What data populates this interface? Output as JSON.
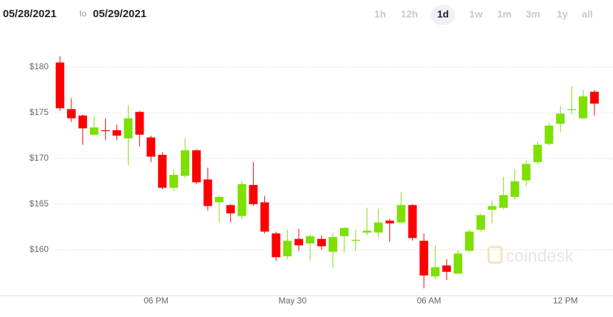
{
  "chart_data": {
    "type": "candlestick",
    "date_range": [
      "05/28/2021",
      "05/29/2021"
    ],
    "date_separator": "to",
    "range_buttons": [
      "1h",
      "12h",
      "1d",
      "1w",
      "1m",
      "3m",
      "1y",
      "all"
    ],
    "selected_range": 2,
    "watermark": "coindesk",
    "categories": [
      null,
      null,
      null,
      null,
      null,
      null,
      null,
      null,
      "06 PM",
      null,
      null,
      null,
      null,
      null,
      null,
      null,
      null,
      null,
      null,
      null,
      "May 30",
      null,
      null,
      null,
      null,
      null,
      null,
      null,
      null,
      null,
      null,
      null,
      "06 AM",
      null,
      null,
      null,
      null,
      null,
      null,
      null,
      null,
      null,
      null,
      null,
      "12 PM",
      null,
      null,
      null
    ],
    "open": [
      180.5,
      175.4,
      174.7,
      172.6,
      173.1,
      173.1,
      172.2,
      175.1,
      172.3,
      170.4,
      166.8,
      168.1,
      170.9,
      167.7,
      165.2,
      164.9,
      163.7,
      167.1,
      165.2,
      161.8,
      159.3,
      161.2,
      160.7,
      161.2,
      159.8,
      161.5,
      161.0,
      161.9,
      161.9,
      163.2,
      163.0,
      164.9,
      161.0,
      157.1,
      158.3,
      157.4,
      159.9,
      162.2,
      164.4,
      164.6,
      165.8,
      167.6,
      169.6,
      171.6,
      173.8,
      175.3,
      174.4,
      177.3
    ],
    "high": [
      181.2,
      176.6,
      174.8,
      174.6,
      174.4,
      173.7,
      175.8,
      175.2,
      172.5,
      170.7,
      168.8,
      172.2,
      171.0,
      169.0,
      166.0,
      165.0,
      167.5,
      169.6,
      165.9,
      162.0,
      162.2,
      162.3,
      161.7,
      161.6,
      161.8,
      162.5,
      162.2,
      164.6,
      164.5,
      163.4,
      166.3,
      165.0,
      161.8,
      160.5,
      159.0,
      160.0,
      162.2,
      164.0,
      165.4,
      168.0,
      168.8,
      169.8,
      171.8,
      173.9,
      175.7,
      177.9,
      177.5,
      177.5
    ],
    "low": [
      175.2,
      174.0,
      171.5,
      172.5,
      172.0,
      172.0,
      169.3,
      171.3,
      169.6,
      166.6,
      166.4,
      167.9,
      167.2,
      164.3,
      163.0,
      163.0,
      163.4,
      164.8,
      161.8,
      158.8,
      159.0,
      159.9,
      158.8,
      160.0,
      158.0,
      159.7,
      159.9,
      161.6,
      161.4,
      160.9,
      162.9,
      161.0,
      155.8,
      156.8,
      156.7,
      157.4,
      159.8,
      162.0,
      162.9,
      164.4,
      165.5,
      167.0,
      169.4,
      171.4,
      172.9,
      174.8,
      174.3,
      174.7
    ],
    "close": [
      175.5,
      174.4,
      173.3,
      173.4,
      173.0,
      172.5,
      174.4,
      172.6,
      170.2,
      166.8,
      168.2,
      170.9,
      167.4,
      164.8,
      165.8,
      164.0,
      167.2,
      165.0,
      162.0,
      159.2,
      161.0,
      160.5,
      161.5,
      160.4,
      161.4,
      162.4,
      161.1,
      162.1,
      163.0,
      162.9,
      164.9,
      161.3,
      157.2,
      158.1,
      157.6,
      159.6,
      162.0,
      163.8,
      164.8,
      166.0,
      167.5,
      169.4,
      171.5,
      173.6,
      174.9,
      175.4,
      176.8,
      176.0
    ],
    "up_color": "#7ee000",
    "down_color": "#ff0000",
    "ylim": [
      155,
      182.7
    ],
    "yticks": [
      {
        "value": 160,
        "label": "$160"
      },
      {
        "value": 165,
        "label": "$165"
      },
      {
        "value": 170,
        "label": "$170"
      },
      {
        "value": 175,
        "label": "$175"
      },
      {
        "value": 180,
        "label": "$180"
      }
    ],
    "grid": true
  }
}
